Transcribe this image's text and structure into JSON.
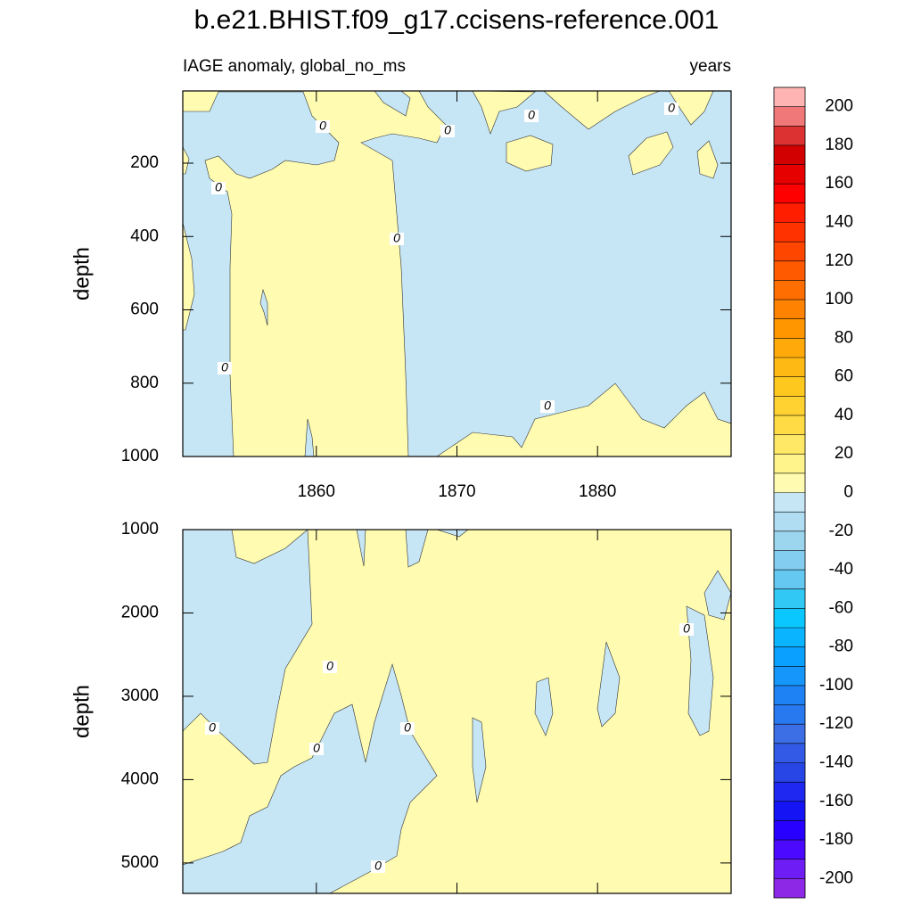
{
  "chart_data": {
    "type": "contour",
    "title": "b.e21.BHIST.f09_g17.ccisens-reference.001",
    "subtitle_left": "IAGE anomaly, global_no_ms",
    "subtitle_right": "years",
    "contour_label": "0",
    "xlim": [
      1850.5,
      1889.5
    ],
    "xticks": [
      1860,
      1870,
      1880
    ],
    "panels": [
      {
        "ylabel": "depth",
        "ylim": [
          3,
          1000
        ],
        "y_inverted": true,
        "yticks": [
          200,
          400,
          600,
          800,
          1000
        ]
      },
      {
        "ylabel": "depth",
        "ylim": [
          1000,
          5365
        ],
        "y_inverted": true,
        "yticks": [
          1000,
          2000,
          3000,
          4000,
          5000
        ]
      }
    ],
    "colorbar": {
      "levels": [
        -200,
        -190,
        -180,
        -170,
        -160,
        -150,
        -140,
        -130,
        -120,
        -110,
        -100,
        -90,
        -80,
        -70,
        -60,
        -50,
        -40,
        -30,
        -20,
        -10,
        0,
        10,
        20,
        30,
        40,
        50,
        60,
        70,
        80,
        90,
        100,
        110,
        120,
        130,
        140,
        150,
        160,
        170,
        180,
        190,
        200
      ],
      "ticks": [
        -200,
        -180,
        -160,
        -140,
        -120,
        -100,
        -80,
        -60,
        -40,
        -20,
        0,
        20,
        40,
        60,
        80,
        100,
        120,
        140,
        160,
        180,
        200
      ],
      "colors": [
        "#8c28e6",
        "#6e1ef5",
        "#4b0aff",
        "#2800ff",
        "#1414f5",
        "#1e28f0",
        "#2846e6",
        "#325ae6",
        "#3c6ee6",
        "#2878f0",
        "#1e82f5",
        "#1496fa",
        "#0aa0ff",
        "#0ab4ff",
        "#0ac8ff",
        "#32c8f5",
        "#64c8f0",
        "#82cdf0",
        "#9bd5ee",
        "#b0ddf2",
        "#c6e6f6",
        "#fffbb0",
        "#fff38c",
        "#ffe866",
        "#ffdc46",
        "#ffd232",
        "#ffc81e",
        "#ffb914",
        "#ffaa0a",
        "#ff9600",
        "#ff8200",
        "#ff6e00",
        "#ff5a00",
        "#ff4600",
        "#ff3200",
        "#ff1e00",
        "#ff0000",
        "#e60000",
        "#d20000",
        "#dc3232",
        "#f07878",
        "#ffb4b4"
      ]
    }
  }
}
